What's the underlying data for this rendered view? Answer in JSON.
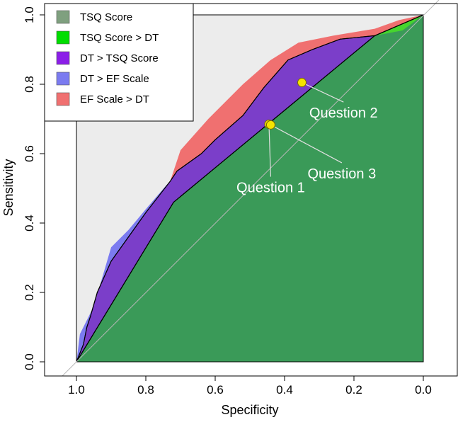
{
  "chart_data": {
    "type": "area",
    "xlabel": "Specificity",
    "ylabel": "Sensitivity",
    "x_reversed": true,
    "xlim": [
      1.0,
      0.0
    ],
    "ylim": [
      0.0,
      1.0
    ],
    "x_ticks": [
      1.0,
      0.8,
      0.6,
      0.4,
      0.2,
      0.0
    ],
    "x_tick_labels": [
      "1.0",
      "0.8",
      "0.6",
      "0.4",
      "0.2",
      "0.0"
    ],
    "y_ticks": [
      0.0,
      0.2,
      0.4,
      0.6,
      0.8,
      1.0
    ],
    "y_tick_labels": [
      "0.0",
      "0.2",
      "0.4",
      "0.6",
      "0.8",
      "1.0"
    ],
    "grid": false,
    "legend_position": "top-left",
    "legend": [
      {
        "label": "TSQ Score",
        "color": "#7fa07f"
      },
      {
        "label": "TSQ Score > DT",
        "color": "#00dd00"
      },
      {
        "label": "DT > TSQ Score",
        "color": "#8b1ee8"
      },
      {
        "label": "DT > EF Scale",
        "color": "#7b7bf0"
      },
      {
        "label": "EF Scale > DT",
        "color": "#f07070"
      }
    ],
    "series": [
      {
        "name": "TSQ Score",
        "role": "base_roc",
        "color": "#3a9a58",
        "points": [
          [
            1.0,
            0.0
          ],
          [
            0.72,
            0.46
          ],
          [
            0.14,
            0.94
          ],
          [
            0.0,
            1.0
          ]
        ]
      },
      {
        "name": "TSQ Score > DT",
        "color": "#46d62e",
        "points": [
          [
            0.14,
            0.94
          ],
          [
            0.06,
            0.955
          ],
          [
            0.0,
            1.0
          ]
        ]
      },
      {
        "name": "DT > TSQ Score",
        "color": "#7b3ec9",
        "points": [
          [
            1.0,
            0.0
          ],
          [
            0.98,
            0.05
          ],
          [
            0.97,
            0.1
          ],
          [
            0.96,
            0.13
          ],
          [
            0.94,
            0.2
          ],
          [
            0.9,
            0.29
          ],
          [
            0.85,
            0.36
          ],
          [
            0.8,
            0.43
          ],
          [
            0.73,
            0.52
          ],
          [
            0.71,
            0.55
          ],
          [
            0.64,
            0.6
          ],
          [
            0.6,
            0.64
          ],
          [
            0.52,
            0.71
          ],
          [
            0.46,
            0.79
          ],
          [
            0.39,
            0.87
          ],
          [
            0.32,
            0.9
          ],
          [
            0.24,
            0.93
          ],
          [
            0.14,
            0.94
          ]
        ]
      },
      {
        "name": "DT > EF Scale",
        "color": "#7b7bf0",
        "points": [
          [
            1.0,
            0.0
          ],
          [
            0.99,
            0.08
          ],
          [
            0.95,
            0.16
          ],
          [
            0.9,
            0.33
          ],
          [
            0.85,
            0.38
          ],
          [
            0.8,
            0.44
          ],
          [
            0.74,
            0.51
          ],
          [
            0.73,
            0.52
          ]
        ]
      },
      {
        "name": "EF Scale > DT",
        "color": "#f07070",
        "points": [
          [
            0.73,
            0.52
          ],
          [
            0.7,
            0.61
          ],
          [
            0.62,
            0.7
          ],
          [
            0.52,
            0.8
          ],
          [
            0.44,
            0.87
          ],
          [
            0.36,
            0.92
          ],
          [
            0.26,
            0.94
          ],
          [
            0.14,
            0.96
          ],
          [
            0.07,
            0.985
          ],
          [
            0.0,
            1.0
          ]
        ]
      }
    ],
    "annotations": [
      {
        "label": "Question 1",
        "x": 0.445,
        "y": 0.685,
        "text_x": 0.44,
        "text_y": 0.505
      },
      {
        "label": "Question 3",
        "x": 0.44,
        "y": 0.683,
        "text_x": 0.235,
        "text_y": 0.545
      },
      {
        "label": "Question 2",
        "x": 0.35,
        "y": 0.805,
        "text_x": 0.23,
        "text_y": 0.72
      }
    ],
    "diagonal": true
  }
}
